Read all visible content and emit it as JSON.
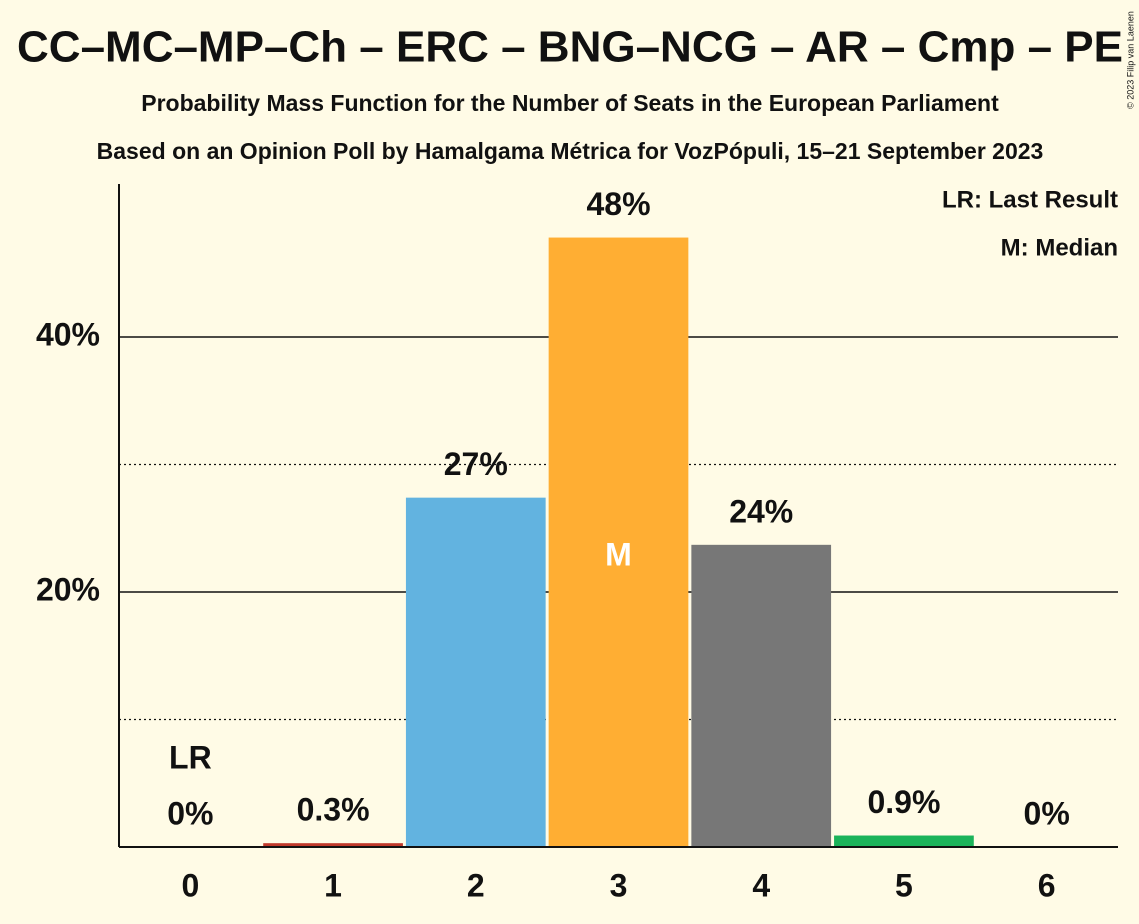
{
  "chart_data": {
    "type": "bar",
    "title": "CC–MC–MP–Ch – ERC – BNG–NCG – AR – Cmp – PE",
    "subtitles": [
      "Probability Mass Function for the Number of Seats in the European Parliament",
      "Based on an Opinion Poll by Hamalgama Métrica for VozPópuli, 15–21 September 2023"
    ],
    "credit": "© 2023 Filip van Laenen",
    "categories": [
      "0",
      "1",
      "2",
      "3",
      "4",
      "5",
      "6"
    ],
    "values": [
      0,
      0.3,
      27.4,
      47.8,
      23.7,
      0.9,
      0
    ],
    "value_labels": [
      "0%",
      "0.3%",
      "27%",
      "48%",
      "24%",
      "0.9%",
      "0%"
    ],
    "colors": [
      "#c0392b",
      "#c0392b",
      "#62b3e0",
      "#ffae33",
      "#777777",
      "#1bb35a",
      "#1bb35a"
    ],
    "ylim": [
      0,
      52
    ],
    "yticks": [
      {
        "value": 20,
        "label": "20%"
      },
      {
        "value": 40,
        "label": "40%"
      }
    ],
    "minor_grid": [
      10,
      30
    ],
    "grid": true,
    "last_result_label": "LR",
    "last_result_index": 0,
    "median_label": "M",
    "median_index": 3,
    "legend_notes": [
      "LR: Last Result",
      "M: Median"
    ]
  }
}
